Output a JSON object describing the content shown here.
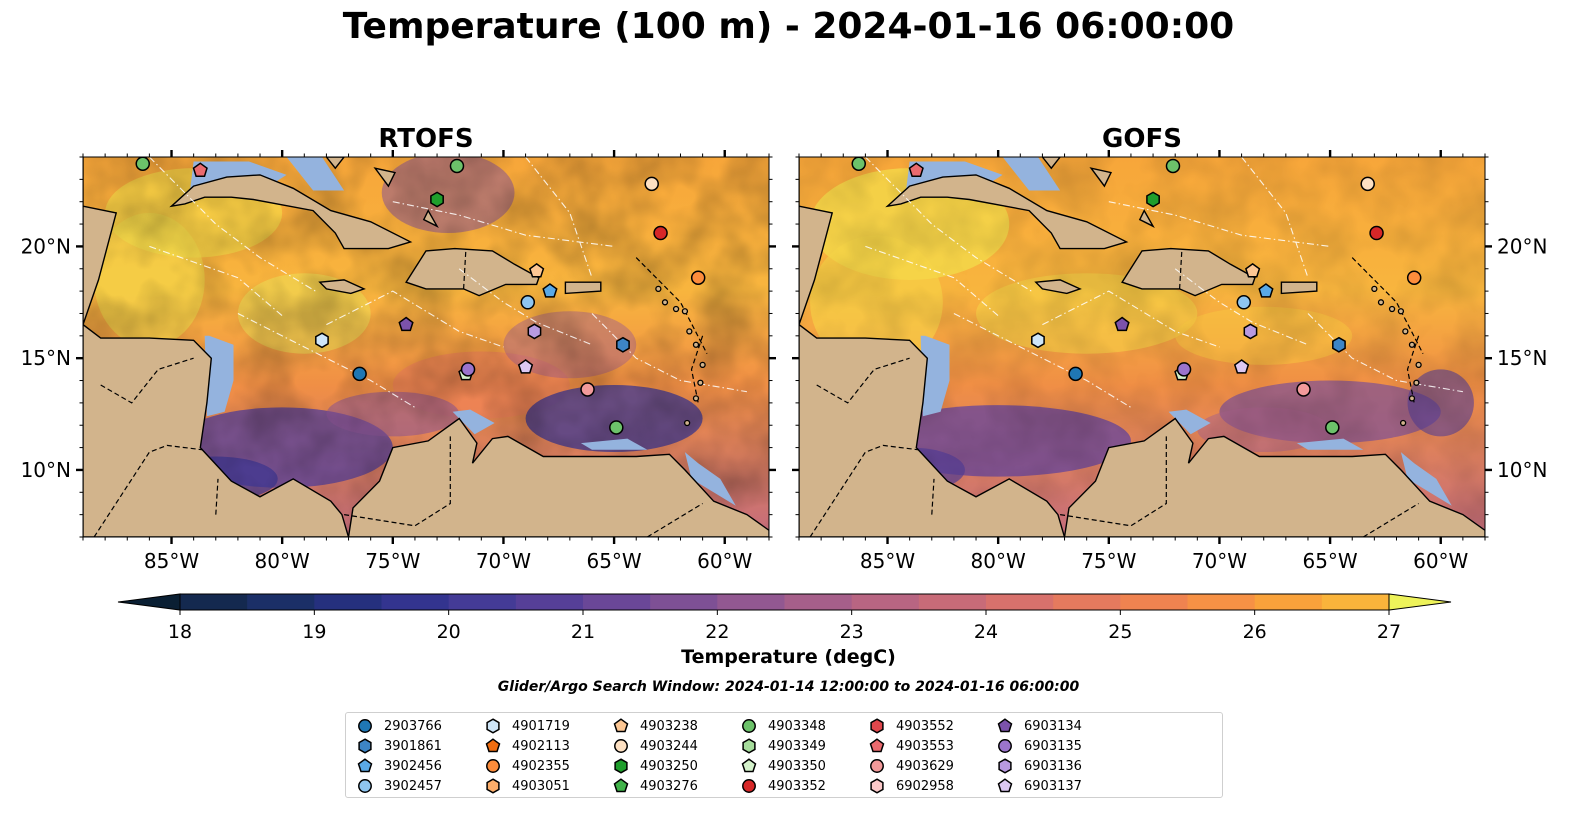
{
  "title": "Temperature (100 m) - 2024-01-16 06:00:00",
  "chart_data": [
    {
      "type": "heatmap",
      "title": "RTOFS",
      "variable": "Temperature (100 m)",
      "xlim": [
        -89,
        -58
      ],
      "ylim": [
        7,
        24
      ],
      "x_ticks": [
        -85,
        -80,
        -75,
        -70,
        -65,
        -60
      ],
      "x_tick_labels": [
        "85°W",
        "80°W",
        "75°W",
        "70°W",
        "65°W",
        "60°W"
      ],
      "y_ticks": [
        10,
        15,
        20
      ],
      "y_tick_labels": [
        "10°N",
        "15°N",
        "20°N"
      ],
      "y_tick_side": "left"
    },
    {
      "type": "heatmap",
      "title": "GOFS",
      "variable": "Temperature (100 m)",
      "xlim": [
        -89,
        -58
      ],
      "ylim": [
        7,
        24
      ],
      "x_ticks": [
        -85,
        -80,
        -75,
        -70,
        -65,
        -60
      ],
      "x_tick_labels": [
        "85°W",
        "80°W",
        "75°W",
        "70°W",
        "65°W",
        "60°W"
      ],
      "y_ticks": [
        10,
        15,
        20
      ],
      "y_tick_labels": [
        "10°N",
        "15°N",
        "20°N"
      ],
      "y_tick_side": "right"
    }
  ],
  "colorbar": {
    "label": "Temperature (degC)",
    "min": 18,
    "max": 27,
    "step": 0.5,
    "ticks": [
      "18",
      "19",
      "20",
      "21",
      "22",
      "23",
      "24",
      "25",
      "26",
      "27"
    ],
    "extend": "both",
    "colors": [
      "#0b2540",
      "#14294f",
      "#1b2f67",
      "#25307e",
      "#33348f",
      "#443b96",
      "#563f98",
      "#6a4798",
      "#7e5095",
      "#925891",
      "#a65f8a",
      "#b86582",
      "#c86b78",
      "#d8716c",
      "#e57a5e",
      "#ef8350",
      "#f69145",
      "#f9a23b",
      "#fab43b",
      "#f8c73f",
      "#f2dd46"
    ],
    "under_color": "#0a1f33",
    "over_color": "#eef35a"
  },
  "search_window": "Glider/Argo Search Window: 2024-01-14 12:00:00 to 2024-01-16 06:00:00",
  "colors": {
    "land": "#d2b48c",
    "shelf_water": "#94b3de",
    "deep_cold": "#0b2540"
  },
  "legend": [
    {
      "id": "2903766",
      "marker": "circle",
      "color": "#1f77b4"
    },
    {
      "id": "3901861",
      "marker": "hexagon",
      "color": "#3d85c6"
    },
    {
      "id": "3902456",
      "marker": "pentagon",
      "color": "#5aa9e6"
    },
    {
      "id": "3902457",
      "marker": "circle",
      "color": "#8ec5f0"
    },
    {
      "id": "4901719",
      "marker": "hexagon",
      "color": "#cfe6f8"
    },
    {
      "id": "4902113",
      "marker": "pentagon",
      "color": "#f06d10"
    },
    {
      "id": "4902355",
      "marker": "circle",
      "color": "#fd8d3c"
    },
    {
      "id": "4903051",
      "marker": "hexagon",
      "color": "#fdae6b"
    },
    {
      "id": "4903238",
      "marker": "pentagon",
      "color": "#fdc794"
    },
    {
      "id": "4903244",
      "marker": "circle",
      "color": "#fde0c2"
    },
    {
      "id": "4903250",
      "marker": "hexagon",
      "color": "#1f9e2c"
    },
    {
      "id": "4903276",
      "marker": "pentagon",
      "color": "#41b34a"
    },
    {
      "id": "4903348",
      "marker": "circle",
      "color": "#6cc26a"
    },
    {
      "id": "4903349",
      "marker": "hexagon",
      "color": "#a6dd9c"
    },
    {
      "id": "4903350",
      "marker": "pentagon",
      "color": "#d4f2cb"
    },
    {
      "id": "4903352",
      "marker": "circle",
      "color": "#d62728"
    },
    {
      "id": "4903552",
      "marker": "hexagon",
      "color": "#e0474c"
    },
    {
      "id": "4903553",
      "marker": "pentagon",
      "color": "#ea6a6e"
    },
    {
      "id": "4903629",
      "marker": "circle",
      "color": "#f29a9a"
    },
    {
      "id": "6902958",
      "marker": "hexagon",
      "color": "#fbc9c9"
    },
    {
      "id": "6903134",
      "marker": "pentagon",
      "color": "#7b52ab"
    },
    {
      "id": "6903135",
      "marker": "circle",
      "color": "#9b74cc"
    },
    {
      "id": "6903136",
      "marker": "hexagon",
      "color": "#b89ae0"
    },
    {
      "id": "6903137",
      "marker": "pentagon",
      "color": "#dcc8f2"
    }
  ],
  "floats_on_map": [
    {
      "id": "2903766",
      "lon": -76.5,
      "lat": 14.3
    },
    {
      "id": "3901861",
      "lon": -64.6,
      "lat": 15.6
    },
    {
      "id": "3902457",
      "lon": -68.9,
      "lat": 17.5
    },
    {
      "id": "4901719",
      "lon": -78.2,
      "lat": 15.8
    },
    {
      "id": "4903244",
      "lon": -63.3,
      "lat": 22.8
    },
    {
      "id": "4902355",
      "lon": -61.2,
      "lat": 18.6
    },
    {
      "id": "4903238",
      "lon": -68.5,
      "lat": 18.9
    },
    {
      "id": "4903352",
      "lon": -62.9,
      "lat": 20.6
    },
    {
      "id": "4903629",
      "lon": -66.2,
      "lat": 13.6
    },
    {
      "id": "4903348",
      "lon": -72.1,
      "lat": 23.6
    },
    {
      "id": "4903348",
      "lon": -86.3,
      "lat": 23.7
    },
    {
      "id": "4903250",
      "lon": -73.0,
      "lat": 22.1
    },
    {
      "id": "4903348",
      "lon": -64.9,
      "lat": 11.9
    },
    {
      "id": "4903350",
      "lon": -71.7,
      "lat": 14.3
    },
    {
      "id": "3902456",
      "lon": -67.9,
      "lat": 18.0
    },
    {
      "id": "6903134",
      "lon": -74.4,
      "lat": 16.5
    },
    {
      "id": "6903136",
      "lon": -68.6,
      "lat": 16.2
    },
    {
      "id": "6903135",
      "lon": -71.6,
      "lat": 14.5
    },
    {
      "id": "6903137",
      "lon": -69.0,
      "lat": 14.6
    },
    {
      "id": "4903553",
      "lon": -83.7,
      "lat": 23.4
    }
  ]
}
